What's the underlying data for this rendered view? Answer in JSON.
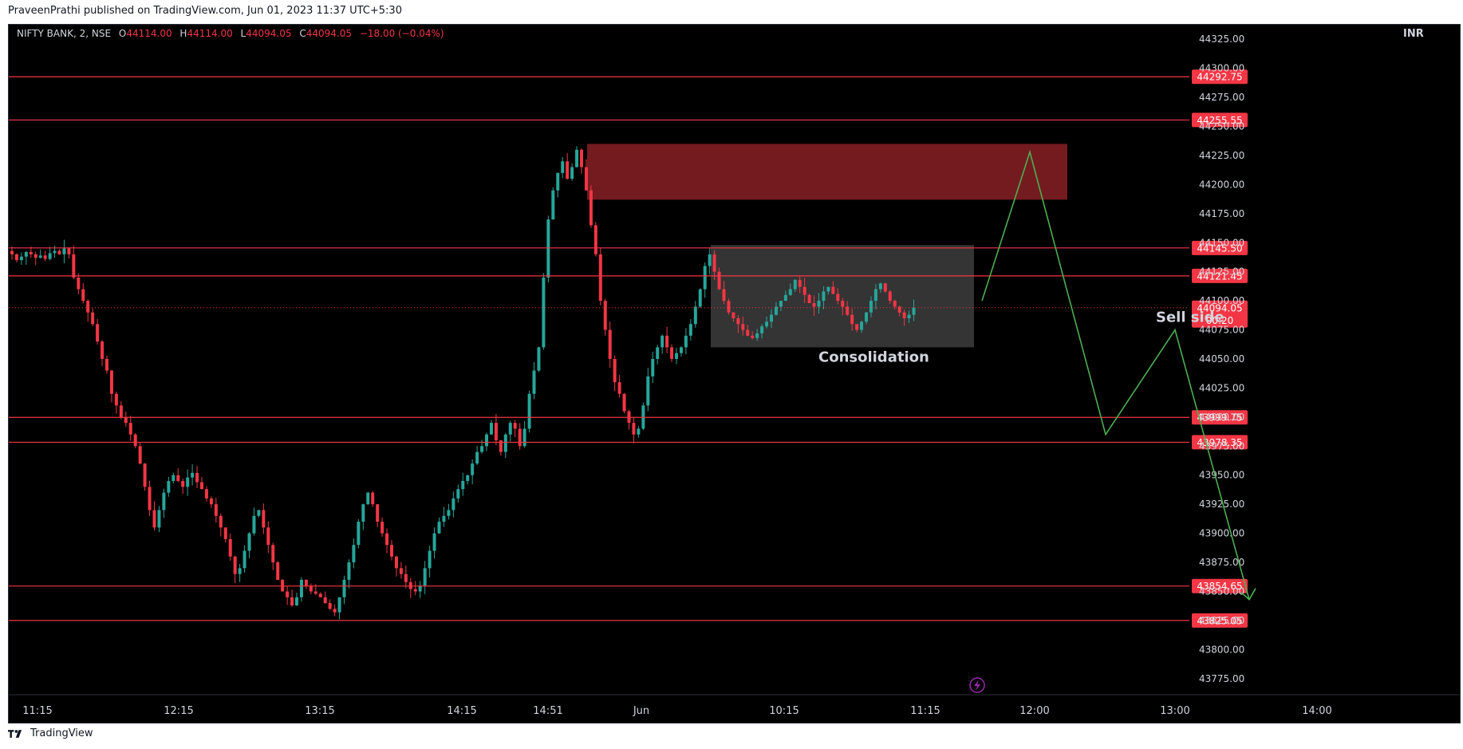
{
  "publish": {
    "text": "PraveenPrathi published on TradingView.com, Jun 01, 2023 11:37 UTC+5:30"
  },
  "symbol": {
    "name": "NIFTY BANK, 2, NSE",
    "open_label": "O",
    "open": "44114.00",
    "high_label": "H",
    "high": "44114.00",
    "low_label": "L",
    "low": "44094.05",
    "close_label": "C",
    "close": "44094.05",
    "change": "−18.00 (−0.04%)"
  },
  "currency": "INR",
  "price_axis": {
    "ticks": [
      "44325.00",
      "44300.00",
      "44275.00",
      "44250.00",
      "44225.00",
      "44200.00",
      "44175.00",
      "44150.00",
      "44125.00",
      "44100.00",
      "44075.00",
      "44050.00",
      "44025.00",
      "44000.00",
      "43975.00",
      "43950.00",
      "43925.00",
      "43900.00",
      "43875.00",
      "43850.00",
      "43825.00",
      "43800.00",
      "43775.00"
    ],
    "min": 43762.5,
    "max": 44337.5
  },
  "time_axis": {
    "ticks": [
      "11:15",
      "12:15",
      "13:15",
      "14:15",
      "14:51",
      "Jun",
      "10:15",
      "11:15",
      "12:00",
      "13:00",
      "14:00"
    ]
  },
  "levels": [
    {
      "price": 44292.75,
      "label": "44292.75"
    },
    {
      "price": 44255.55,
      "label": "44255.55"
    },
    {
      "price": 44145.5,
      "label": "44145.50"
    },
    {
      "price": 44121.45,
      "label": "44121.45"
    },
    {
      "price": 43999.75,
      "label": "43999.75"
    },
    {
      "price": 43978.35,
      "label": "43978.35"
    },
    {
      "price": 43854.65,
      "label": "43854.65"
    },
    {
      "price": 43825.05,
      "label": "43825.05"
    }
  ],
  "last_price": {
    "price": 44094.05,
    "label": "44094.05",
    "countdown": "00:20"
  },
  "zones": {
    "supply": {
      "top": 44235,
      "bottom": 44187
    },
    "consolidation": {
      "top": 44148,
      "bottom": 44060,
      "label": "Consolidation"
    }
  },
  "annotations": {
    "sell_side": "Sell side"
  },
  "projection": [
    44100,
    44228,
    43985,
    44075,
    43843
  ],
  "colors": {
    "up": "#26a69a",
    "down": "#f23645",
    "level": "#f23645",
    "projection": "#4caf50",
    "supply_zone": "#7a1c22",
    "consolidation_zone": "#3a3a3a"
  },
  "chart_data": {
    "type": "candlestick",
    "title": "NIFTY BANK, 2, NSE",
    "series": [
      {
        "name": "NIFTY BANK",
        "ohlc_close": [
          44140,
          44135,
          44138,
          44142,
          44140,
          44137,
          44139,
          44136,
          44141,
          44143,
          44140,
          44145,
          44140,
          44120,
          44110,
          44100,
          44090,
          44080,
          44065,
          44050,
          44040,
          44020,
          44010,
          44000,
          43995,
          43985,
          43975,
          43960,
          43940,
          43920,
          43905,
          43920,
          43935,
          43945,
          43950,
          43945,
          43940,
          43948,
          43952,
          43944,
          43938,
          43930,
          43925,
          43915,
          43905,
          43895,
          43880,
          43865,
          43870,
          43885,
          43900,
          43915,
          43920,
          43905,
          43890,
          43875,
          43860,
          43850,
          43845,
          43838,
          43845,
          43860,
          43855,
          43850,
          43848,
          43845,
          43840,
          43835,
          43832,
          43845,
          43860,
          43875,
          43890,
          43910,
          43925,
          43935,
          43925,
          43910,
          43900,
          43890,
          43880,
          43870,
          43865,
          43858,
          43852,
          43850,
          43855,
          43870,
          43885,
          43900,
          43910,
          43915,
          43920,
          43930,
          43938,
          43945,
          43950,
          43960,
          43970,
          43975,
          43985,
          43995,
          43980,
          43970,
          43985,
          43995,
          43990,
          43975,
          43990,
          44020,
          44040,
          44060,
          44120,
          44170,
          44195,
          44210,
          44220,
          44205,
          44215,
          44230,
          44215,
          44195,
          44165,
          44140,
          44100,
          44075,
          44050,
          44030,
          44020,
          44005,
          43995,
          43985,
          43990,
          44010,
          44035,
          44050,
          44060,
          44070,
          44060,
          44050,
          44055,
          44060,
          44070,
          44080,
          44095,
          44110,
          44130,
          44140,
          44125,
          44110,
          44100,
          44090,
          44085,
          44080,
          44075,
          44070,
          44068,
          44072,
          44078,
          44082,
          44088,
          44095,
          44100,
          44105,
          44110,
          44118,
          44112,
          44105,
          44098,
          44095,
          44100,
          44108,
          44112,
          44106,
          44100,
          44095,
          44088,
          44080,
          44075,
          44082,
          44090,
          44100,
          44110,
          44115,
          44108,
          44100,
          44095,
          44090,
          44085,
          44088,
          44094
        ]
      }
    ],
    "ylim": [
      43762.5,
      44337.5
    ]
  }
}
